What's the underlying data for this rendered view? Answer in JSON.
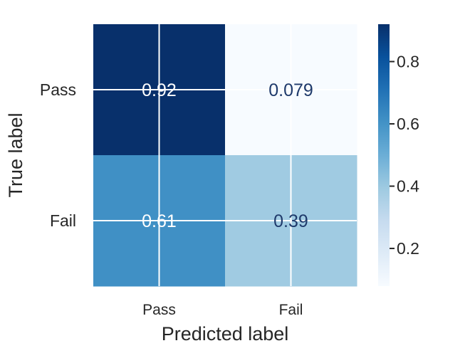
{
  "chart_data": {
    "type": "heatmap",
    "title": "",
    "xlabel": "Predicted label",
    "ylabel": "True label",
    "x_categories": [
      "Pass",
      "Fail"
    ],
    "y_categories": [
      "Pass",
      "Fail"
    ],
    "values": [
      [
        0.92,
        0.079
      ],
      [
        0.61,
        0.39
      ]
    ],
    "value_labels": [
      [
        "0.92",
        "0.079"
      ],
      [
        "0.61",
        "0.39"
      ]
    ],
    "colormap": "Blues",
    "colorbar": {
      "range": [
        0.079,
        0.92
      ],
      "ticks": [
        0.8,
        0.6,
        0.4,
        0.2
      ],
      "tick_labels": [
        "0.8",
        "0.6",
        "0.4",
        "0.2"
      ]
    },
    "grid": true,
    "colors": {
      "cmap_stops": [
        "#f7fbff",
        "#deebf7",
        "#c6dbef",
        "#9ecae1",
        "#6baed6",
        "#4292c6",
        "#2171b5",
        "#08519c",
        "#08306b"
      ],
      "grid_line": "#ffffff",
      "text_dark": "#1f3a6b",
      "text_light": "#ffffff",
      "axis_text": "#262626"
    }
  }
}
